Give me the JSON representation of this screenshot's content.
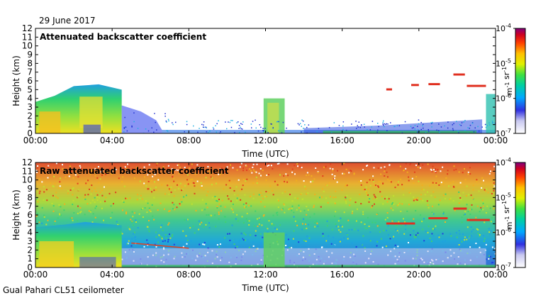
{
  "date_label": "29 June 2017",
  "footer_label": "Gual Pahari CL51 ceilometer",
  "chart_data": [
    {
      "type": "heatmap",
      "title": "Attenuated backscatter coefficient",
      "xlabel": "Time (UTC)",
      "ylabel": "Height (km)",
      "xlim": [
        0,
        24
      ],
      "ylim": [
        0,
        12
      ],
      "xticks": [
        "00:00",
        "04:00",
        "08:00",
        "12:00",
        "16:00",
        "20:00",
        "00:00"
      ],
      "yticks": [
        0,
        1,
        2,
        3,
        4,
        5,
        6,
        7,
        8,
        9,
        10,
        11,
        12
      ],
      "colorbar": {
        "scale": "log",
        "range": [
          1e-07,
          0.0001
        ],
        "ticks": [
          "10-7",
          "10-6",
          "10-5",
          "10-4"
        ],
        "unit": "m-1 sr-1"
      }
    },
    {
      "type": "heatmap",
      "title": "Raw attenuated backscatter coefficient",
      "xlabel": "Time (UTC)",
      "ylabel": "Height (km)",
      "xlim": [
        0,
        24
      ],
      "ylim": [
        0,
        12
      ],
      "xticks": [
        "00:00",
        "04:00",
        "08:00",
        "12:00",
        "16:00",
        "20:00",
        "00:00"
      ],
      "yticks": [
        0,
        1,
        2,
        3,
        4,
        5,
        6,
        7,
        8,
        9,
        10,
        11,
        12
      ],
      "colorbar": {
        "scale": "log",
        "range": [
          1e-07,
          0.0001
        ],
        "ticks": [
          "10-7",
          "10-6",
          "10-5",
          "10-4"
        ],
        "unit": "m-1 sr-1"
      }
    }
  ]
}
